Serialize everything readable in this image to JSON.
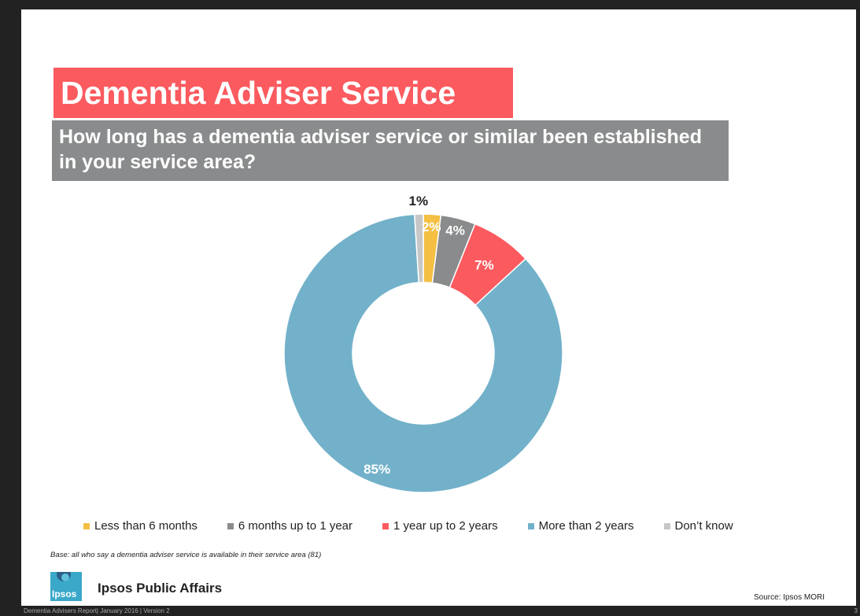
{
  "slide": {
    "title": "Dementia Adviser Service",
    "subtitle": "How long has a dementia adviser service or similar been established in your service area?",
    "base_note": "Base: all who say a dementia adviser service is available in their service area (81)",
    "org_name": "Ipsos Public Affairs",
    "logo_text": "Ipsos",
    "source": "Source:  Ipsos MORI",
    "footer": "Dementia Advisers Report| January 2016 | Version 2",
    "page_number": "3"
  },
  "colors": {
    "title_bg": "#fb5a5f",
    "subtitle_bg": "#8a8b8c"
  },
  "chart_data": {
    "type": "pie",
    "variant": "donut",
    "title": "",
    "legend_position": "bottom",
    "slices": [
      {
        "label": "Less than 6 months",
        "value": 2,
        "display": "2%",
        "color": "#f4bf43"
      },
      {
        "label": "6 months up to 1 year",
        "value": 4,
        "display": "4%",
        "color": "#8a8b8c"
      },
      {
        "label": "1 year up to 2 years",
        "value": 7,
        "display": "7%",
        "color": "#fb5a5f"
      },
      {
        "label": "More than 2 years",
        "value": 85,
        "display": "85%",
        "color": "#72b1c9"
      },
      {
        "label": "Don’t know",
        "value": 1,
        "display": "1%",
        "color": "#c7c7c7"
      }
    ]
  }
}
